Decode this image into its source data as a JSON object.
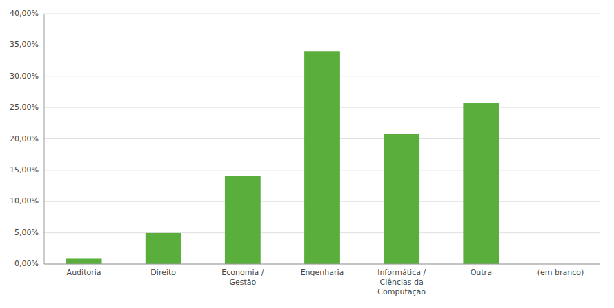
{
  "chart_data": {
    "type": "bar",
    "categories": [
      "Auditoria",
      "Direito",
      "Economia /\nGestão",
      "Engenharia",
      "Informática /\nCiências da\nComputação",
      "Outra",
      "(em branco)"
    ],
    "values": [
      0.0083,
      0.0497,
      0.1407,
      0.3402,
      0.2072,
      0.2569,
      0.0
    ],
    "color": "#5aaf3c",
    "ylim": [
      0,
      0.4
    ],
    "yticks": [
      {
        "value": 0.0,
        "label": "0,00%"
      },
      {
        "value": 0.05,
        "label": "5,00%"
      },
      {
        "value": 0.1,
        "label": "10,00%"
      },
      {
        "value": 0.15,
        "label": "15,00%"
      },
      {
        "value": 0.2,
        "label": "20,00%"
      },
      {
        "value": 0.25,
        "label": "25,00%"
      },
      {
        "value": 0.3,
        "label": "30,00%"
      },
      {
        "value": 0.35,
        "label": "35,00%"
      },
      {
        "value": 0.4,
        "label": "40,00%"
      }
    ],
    "grid": true
  }
}
